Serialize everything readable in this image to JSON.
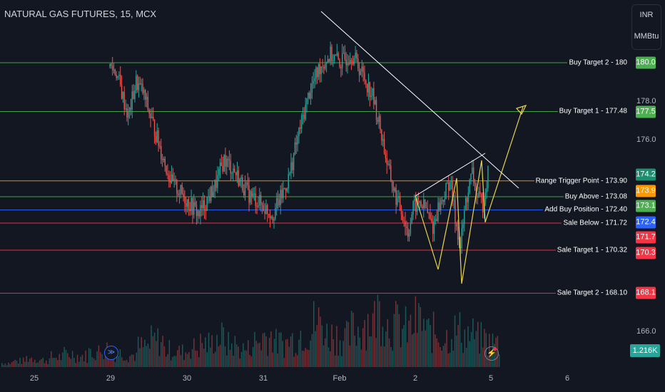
{
  "header": {
    "title": "NATURAL GAS FUTURES, 15, MCX"
  },
  "units": {
    "currency": "INR",
    "measure": "MMBtu"
  },
  "chart_data": {
    "type": "candlestick",
    "symbol": "NATURAL GAS FUTURES",
    "interval": "15",
    "exchange": "MCX",
    "x_ticks": [
      "25",
      "29",
      "30",
      "31",
      "Feb",
      "2",
      "5",
      "6"
    ],
    "y_ticks": [
      166.0,
      176.0,
      178.0
    ],
    "ylim": [
      164.5,
      182
    ],
    "levels": [
      {
        "label": "Buy Target 2 - 180",
        "price": 180.0,
        "tag": "180.0",
        "color": "#4caf50"
      },
      {
        "label": "Buy Target 1 - 177.48",
        "price": 177.48,
        "tag": "177.5",
        "color": "#4caf50"
      },
      {
        "label": "Range Trigger Point - 173.90",
        "price": 173.9,
        "tag": "173.9",
        "color": "#ff9800"
      },
      {
        "label": "Buy Above - 173.08",
        "price": 173.08,
        "tag": "173.1",
        "color": "#4caf50"
      },
      {
        "label": "Add Buy Position - 172.40",
        "price": 172.4,
        "tag": "172.4",
        "color": "#2962ff"
      },
      {
        "label": "Sale Below - 171.72",
        "price": 171.72,
        "tag": "171.7",
        "color": "#f23645"
      },
      {
        "label": "Sale Target 1 - 170.32",
        "price": 170.32,
        "tag": "170.3",
        "color": "#f23645"
      },
      {
        "label": "Sale Target 2 - 168.10",
        "price": 168.1,
        "tag": "168.1",
        "color": "#f23645"
      }
    ],
    "last_price": {
      "tag": "174.2",
      "price": 174.2,
      "color": "#1e8e6e"
    },
    "volume_label": "1.216K",
    "price_path": [
      [
        0,
        179.8
      ],
      [
        5,
        179.5
      ],
      [
        10,
        178.2
      ],
      [
        14,
        177.2
      ],
      [
        20,
        179.0
      ],
      [
        25,
        178.5
      ],
      [
        32,
        177.0
      ],
      [
        40,
        175.2
      ],
      [
        47,
        173.8
      ],
      [
        55,
        173.2
      ],
      [
        62,
        172.6
      ],
      [
        68,
        172.2
      ],
      [
        74,
        172.9
      ],
      [
        80,
        173.6
      ],
      [
        87,
        175.0
      ],
      [
        94,
        174.5
      ],
      [
        100,
        173.8
      ],
      [
        106,
        173.2
      ],
      [
        112,
        172.9
      ],
      [
        118,
        172.5
      ],
      [
        124,
        172.2
      ],
      [
        130,
        173.0
      ],
      [
        136,
        174.0
      ],
      [
        144,
        176.4
      ],
      [
        152,
        178.5
      ],
      [
        160,
        179.8
      ],
      [
        168,
        180.4
      ],
      [
        176,
        180.0
      ],
      [
        184,
        180.5
      ],
      [
        192,
        179.5
      ],
      [
        200,
        178.3
      ],
      [
        206,
        176.6
      ],
      [
        212,
        174.5
      ],
      [
        218,
        173.0
      ],
      [
        223,
        172.2
      ],
      [
        227,
        171.2
      ],
      [
        231,
        172.5
      ],
      [
        236,
        172.8
      ],
      [
        241,
        172.4
      ],
      [
        246,
        171.5
      ],
      [
        250,
        172.5
      ],
      [
        255,
        173.2
      ],
      [
        259,
        174.0
      ],
      [
        263,
        172.0
      ],
      [
        267,
        170.5
      ],
      [
        271,
        172.8
      ],
      [
        276,
        174.3
      ],
      [
        280,
        173.0
      ],
      [
        284,
        172.7
      ],
      [
        288,
        174.3
      ]
    ],
    "volume_profile": [
      8,
      12,
      18,
      14,
      20,
      26,
      22,
      30,
      36,
      28,
      24,
      40,
      52,
      34,
      30,
      38,
      46,
      58,
      44,
      36,
      50,
      62,
      48,
      55,
      70,
      88,
      64,
      58,
      74,
      92,
      110,
      84,
      76,
      90,
      68,
      60,
      72,
      64,
      56,
      48
    ]
  },
  "buttons": {
    "replay_icon": "replay-icon",
    "alert_icon": "bolt-icon"
  }
}
